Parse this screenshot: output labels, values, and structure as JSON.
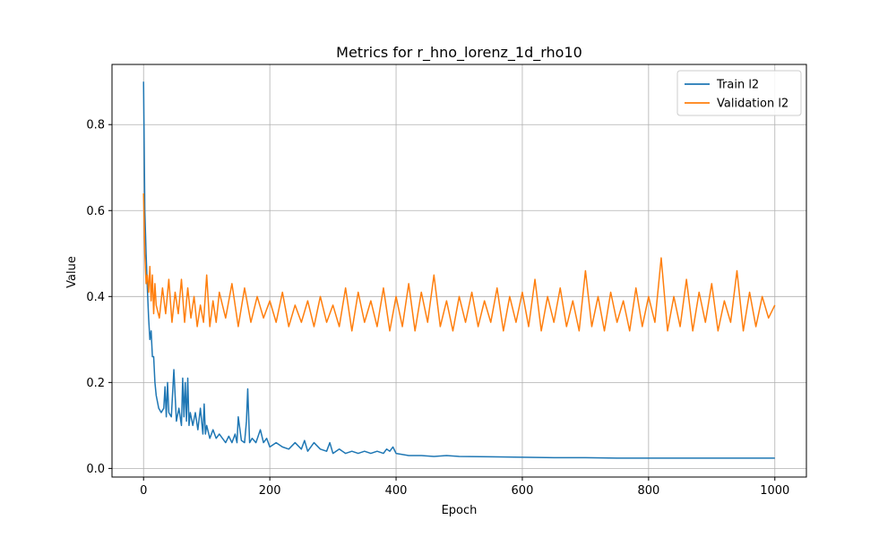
{
  "chart_data": {
    "type": "line",
    "title": "Metrics for r_hno_lorenz_1d_rho10",
    "xlabel": "Epoch",
    "ylabel": "Value",
    "xlim": [
      -50,
      1050
    ],
    "ylim": [
      -0.02,
      0.94
    ],
    "xticks": [
      0,
      200,
      400,
      600,
      800,
      1000
    ],
    "yticks": [
      0.0,
      0.2,
      0.4,
      0.6,
      0.8
    ],
    "grid": true,
    "legend_position": "top-right",
    "series": [
      {
        "name": "Train l2",
        "color": "#1f77b4",
        "x": [
          0,
          2,
          4,
          6,
          8,
          10,
          12,
          14,
          16,
          18,
          20,
          24,
          28,
          32,
          34,
          36,
          38,
          40,
          44,
          48,
          52,
          56,
          60,
          62,
          64,
          66,
          68,
          70,
          72,
          74,
          78,
          82,
          86,
          90,
          94,
          96,
          98,
          100,
          105,
          110,
          115,
          120,
          125,
          130,
          135,
          140,
          145,
          148,
          150,
          155,
          160,
          163,
          165,
          168,
          172,
          178,
          185,
          190,
          195,
          200,
          210,
          220,
          230,
          240,
          250,
          255,
          260,
          270,
          280,
          290,
          295,
          300,
          310,
          320,
          330,
          340,
          350,
          360,
          370,
          380,
          385,
          390,
          395,
          400,
          420,
          440,
          460,
          480,
          500,
          550,
          600,
          650,
          700,
          750,
          800,
          850,
          900,
          950,
          1000
        ],
        "y": [
          0.9,
          0.6,
          0.5,
          0.42,
          0.35,
          0.3,
          0.32,
          0.26,
          0.26,
          0.2,
          0.17,
          0.14,
          0.13,
          0.14,
          0.19,
          0.12,
          0.2,
          0.13,
          0.12,
          0.23,
          0.11,
          0.14,
          0.1,
          0.21,
          0.12,
          0.2,
          0.11,
          0.21,
          0.1,
          0.13,
          0.1,
          0.13,
          0.09,
          0.14,
          0.08,
          0.15,
          0.08,
          0.1,
          0.07,
          0.09,
          0.07,
          0.08,
          0.07,
          0.06,
          0.075,
          0.06,
          0.08,
          0.06,
          0.12,
          0.065,
          0.06,
          0.11,
          0.185,
          0.06,
          0.07,
          0.06,
          0.09,
          0.06,
          0.07,
          0.05,
          0.06,
          0.05,
          0.045,
          0.06,
          0.045,
          0.065,
          0.04,
          0.06,
          0.045,
          0.04,
          0.06,
          0.035,
          0.045,
          0.035,
          0.04,
          0.035,
          0.04,
          0.035,
          0.04,
          0.035,
          0.045,
          0.04,
          0.05,
          0.035,
          0.03,
          0.03,
          0.028,
          0.03,
          0.028,
          0.027,
          0.026,
          0.025,
          0.025,
          0.024,
          0.024,
          0.024,
          0.024,
          0.024,
          0.024
        ]
      },
      {
        "name": "Validation l2",
        "color": "#ff7f0e",
        "x": [
          0,
          2,
          4,
          6,
          8,
          10,
          12,
          14,
          16,
          18,
          20,
          25,
          30,
          35,
          40,
          45,
          50,
          55,
          60,
          65,
          70,
          75,
          80,
          85,
          90,
          95,
          100,
          105,
          110,
          115,
          120,
          130,
          140,
          150,
          160,
          170,
          180,
          190,
          200,
          210,
          220,
          230,
          240,
          250,
          260,
          270,
          280,
          290,
          300,
          310,
          320,
          330,
          340,
          350,
          360,
          370,
          380,
          390,
          400,
          410,
          420,
          430,
          440,
          450,
          460,
          470,
          480,
          490,
          500,
          510,
          520,
          530,
          540,
          550,
          560,
          570,
          580,
          590,
          600,
          610,
          620,
          630,
          640,
          650,
          660,
          670,
          680,
          690,
          700,
          710,
          720,
          730,
          740,
          750,
          760,
          770,
          780,
          790,
          800,
          810,
          820,
          830,
          840,
          850,
          860,
          870,
          880,
          890,
          900,
          910,
          920,
          930,
          940,
          950,
          960,
          970,
          980,
          990,
          1000
        ],
        "y": [
          0.64,
          0.5,
          0.43,
          0.45,
          0.41,
          0.47,
          0.39,
          0.45,
          0.36,
          0.43,
          0.38,
          0.35,
          0.42,
          0.36,
          0.44,
          0.34,
          0.41,
          0.36,
          0.44,
          0.34,
          0.42,
          0.35,
          0.4,
          0.33,
          0.38,
          0.34,
          0.45,
          0.33,
          0.39,
          0.34,
          0.41,
          0.35,
          0.43,
          0.33,
          0.42,
          0.34,
          0.4,
          0.35,
          0.39,
          0.34,
          0.41,
          0.33,
          0.38,
          0.34,
          0.39,
          0.33,
          0.4,
          0.34,
          0.38,
          0.33,
          0.42,
          0.32,
          0.41,
          0.34,
          0.39,
          0.33,
          0.42,
          0.32,
          0.4,
          0.33,
          0.43,
          0.32,
          0.41,
          0.34,
          0.45,
          0.33,
          0.39,
          0.32,
          0.4,
          0.34,
          0.41,
          0.33,
          0.39,
          0.34,
          0.42,
          0.32,
          0.4,
          0.34,
          0.41,
          0.33,
          0.44,
          0.32,
          0.4,
          0.34,
          0.42,
          0.33,
          0.39,
          0.32,
          0.46,
          0.33,
          0.4,
          0.32,
          0.41,
          0.34,
          0.39,
          0.32,
          0.42,
          0.33,
          0.4,
          0.34,
          0.49,
          0.32,
          0.4,
          0.33,
          0.44,
          0.32,
          0.41,
          0.34,
          0.43,
          0.32,
          0.39,
          0.34,
          0.46,
          0.32,
          0.41,
          0.33,
          0.4,
          0.35,
          0.38
        ]
      }
    ]
  }
}
